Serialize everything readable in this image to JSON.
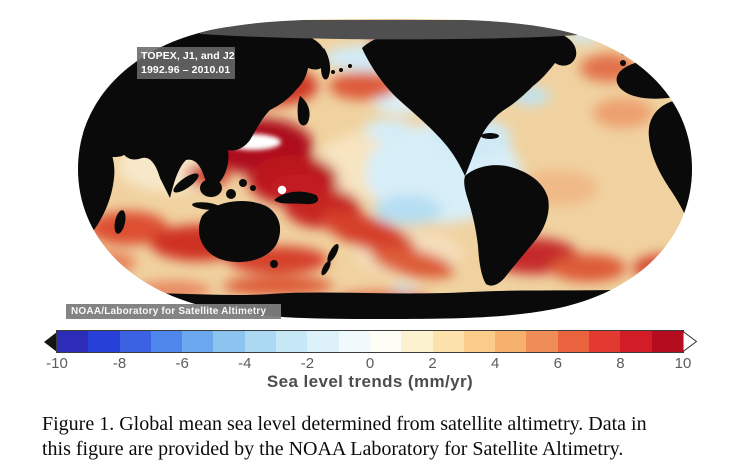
{
  "figure": {
    "map": {
      "mission_line1": "TOPEX, J1, and J2",
      "mission_line2": "1992.96 – 2010.01",
      "credit": "NOAA/Laboratory for Satellite Altimetry"
    },
    "colorbar": {
      "axis_label": "Sea level trends (mm/yr)",
      "min": -10,
      "max": 10,
      "unit": "mm/yr",
      "ticks": [
        "-10",
        "-8",
        "-6",
        "-4",
        "-2",
        "0",
        "2",
        "4",
        "6",
        "8",
        "10"
      ],
      "segment_colors": [
        "#2c2cb8",
        "#2640d8",
        "#3a62e2",
        "#4f86ec",
        "#6ca8f0",
        "#8cc4f0",
        "#abd8f2",
        "#c6e7f5",
        "#ddf1f8",
        "#f0f9fc",
        "#fefdf5",
        "#fdf2cf",
        "#fce1ab",
        "#fbcb8a",
        "#f7b16e",
        "#f08c55",
        "#e9633f",
        "#e23a30",
        "#d21d27",
        "#b50d1f"
      ]
    },
    "caption_lines": [
      "Figure 1. Global mean sea level determined from satellite altimetry. Data in",
      "this figure are provided by the NOAA Laboratory for Satellite Altimetry."
    ],
    "colors": {
      "land": "#0a0a0a",
      "arctic_band": "#4f4f4f",
      "ocean_base": "#f0d2a0"
    }
  }
}
